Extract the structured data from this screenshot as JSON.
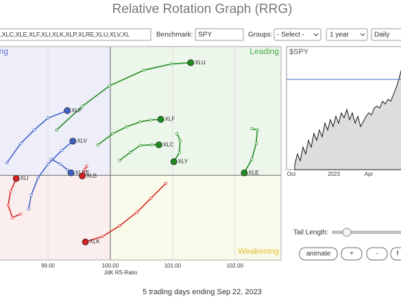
{
  "chart_data": {
    "type": "scatter",
    "title": "Relative Rotation Graph (RRG)",
    "x_label": "JdK RS-Ratio",
    "subtitle": "5 trading days ending Sep 22, 2023",
    "xlim": [
      98.23,
      102.74
    ],
    "ylim": [
      98.64,
      102.07
    ],
    "xticks": [
      {
        "value": 99,
        "label": "99.00"
      },
      {
        "value": 100,
        "label": "100.00"
      },
      {
        "value": 101,
        "label": "101.00"
      },
      {
        "value": 102,
        "label": "102.00"
      }
    ],
    "grid": true,
    "crosshair": {
      "x": 100,
      "y": 100
    },
    "quadrant_labels": {
      "improving": "Improving",
      "leading": "Leading",
      "weakening": "Weakening"
    },
    "series": [
      {
        "name": "XLU",
        "color": "#1e8c1e",
        "x": [
          99.14,
          99.55,
          99.99,
          100.54,
          100.98,
          101.29
        ],
        "values": [
          100.73,
          101.11,
          101.44,
          101.69,
          101.79,
          101.81
        ]
      },
      {
        "name": "XLF",
        "color": "#1e8c1e",
        "x": [
          99.8,
          100.04,
          100.26,
          100.48,
          100.65,
          100.81
        ],
        "values": [
          100.49,
          100.67,
          100.78,
          100.86,
          100.89,
          100.9
        ]
      },
      {
        "name": "XLC",
        "color": "#1e8c1e",
        "x": [
          100.15,
          100.32,
          100.48,
          100.67,
          100.78
        ],
        "values": [
          100.24,
          100.37,
          100.48,
          100.49,
          100.49
        ]
      },
      {
        "name": "XLY",
        "color": "#1e8c1e",
        "x": [
          101.07,
          101.12,
          101.11,
          101.02
        ],
        "values": [
          100.67,
          100.56,
          100.37,
          100.22
        ]
      },
      {
        "name": "XLE",
        "color": "#1e8c1e",
        "x": [
          102.27,
          102.36,
          102.34,
          102.27,
          102.15
        ],
        "values": [
          100.75,
          100.73,
          100.51,
          100.26,
          100.04
        ]
      },
      {
        "name": "XLP",
        "color": "#4060c8",
        "x": [
          98.34,
          98.56,
          98.78,
          99.0,
          99.31
        ],
        "values": [
          100.2,
          100.51,
          100.73,
          100.92,
          101.04
        ]
      },
      {
        "name": "XLV",
        "color": "#4060c8",
        "x": [
          98.69,
          98.73,
          98.84,
          99.0,
          99.22,
          99.4
        ],
        "values": [
          99.46,
          99.68,
          99.96,
          100.18,
          100.4,
          100.55
        ]
      },
      {
        "name": "XLRE",
        "color": "#4060c8",
        "x": [
          99.05,
          99.2,
          99.31,
          99.37
        ],
        "values": [
          100.26,
          100.18,
          100.09,
          100.04
        ]
      },
      {
        "name": "XLB",
        "color": "#d42020",
        "x": [
          99.62,
          99.59,
          99.57,
          99.55
        ],
        "values": [
          100.15,
          100.09,
          100.03,
          99.99
        ]
      },
      {
        "name": "XLI",
        "color": "#d42020",
        "x": [
          98.56,
          98.43,
          98.36,
          98.4,
          98.49
        ],
        "values": [
          99.38,
          99.32,
          99.52,
          99.74,
          99.95
        ]
      },
      {
        "name": "XLK",
        "color": "#d42020",
        "x": [
          100.89,
          100.65,
          100.43,
          100.15,
          99.88,
          99.6
        ],
        "values": [
          99.87,
          99.63,
          99.41,
          99.19,
          99.02,
          98.93
        ]
      }
    ]
  },
  "controls": {
    "symbols": ",XLC,XLE,XLF,XLI,XLK,XLP,XLRE,XLU,XLV,XL",
    "benchmark_label": "Benchmark:",
    "benchmark": "SPY",
    "groups_label": "Groups:",
    "groups": "- Select -",
    "period": "1 year",
    "interval": "Daily",
    "tail_length_label": "Tail Length:",
    "buttons": [
      "animate",
      "+",
      "-",
      "f"
    ]
  },
  "mini_chart": {
    "symbol": "$SPY",
    "x_labels": [
      "Oct",
      "2023",
      "Apr"
    ]
  }
}
